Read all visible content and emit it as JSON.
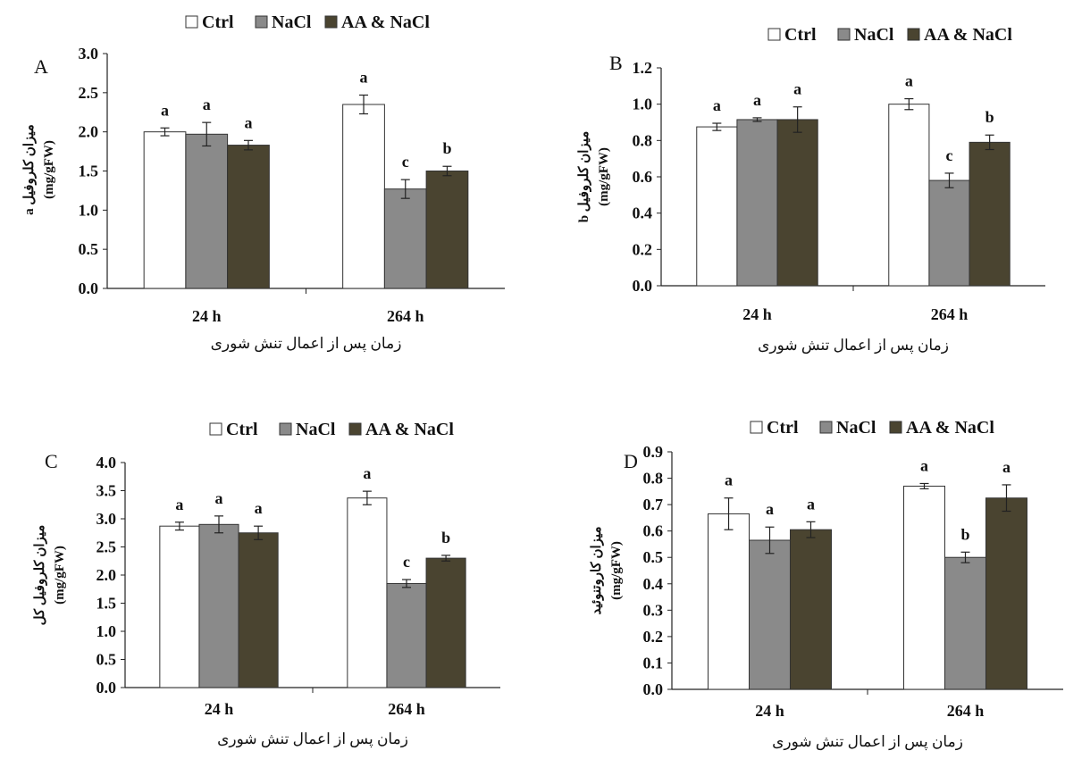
{
  "chart_data": [
    {
      "panel": "A",
      "type": "bar",
      "categories": [
        "24 h",
        "264 h"
      ],
      "xlabel": "زمان پس از اعمال تنش شوری",
      "ylabel": "میزان کلروفیل a",
      "ylabel_unit": "(mg/gFW)",
      "ylim": [
        0,
        3.0
      ],
      "yticks": [
        "0.0",
        "0.5",
        "1.0",
        "1.5",
        "2.0",
        "2.5",
        "3.0"
      ],
      "legend_position": "top",
      "series": [
        {
          "name": "Ctrl",
          "color": "#ffffff",
          "values": [
            2.0,
            2.35
          ],
          "errors": [
            0.05,
            0.12
          ],
          "labels": [
            "a",
            "a"
          ]
        },
        {
          "name": "NaCl",
          "color": "#8a8a8a",
          "values": [
            1.97,
            1.27
          ],
          "errors": [
            0.15,
            0.12
          ],
          "labels": [
            "a",
            "c"
          ]
        },
        {
          "name": "AA & NaCl",
          "color": "#4a4430",
          "values": [
            1.83,
            1.5
          ],
          "errors": [
            0.06,
            0.06
          ],
          "labels": [
            "a",
            "b"
          ]
        }
      ]
    },
    {
      "panel": "B",
      "type": "bar",
      "categories": [
        "24 h",
        "264 h"
      ],
      "xlabel": "زمان پس از اعمال تنش شوری",
      "ylabel": "میزان کلروفیل b",
      "ylabel_unit": "(mg/gFW)",
      "ylim": [
        0,
        1.2
      ],
      "yticks": [
        "0.0",
        "0.2",
        "0.4",
        "0.6",
        "0.8",
        "1.0",
        "1.2"
      ],
      "legend_position": "top",
      "series": [
        {
          "name": "Ctrl",
          "color": "#ffffff",
          "values": [
            0.875,
            1.0
          ],
          "errors": [
            0.02,
            0.03
          ],
          "labels": [
            "a",
            "a"
          ]
        },
        {
          "name": "NaCl",
          "color": "#8a8a8a",
          "values": [
            0.915,
            0.58
          ],
          "errors": [
            0.01,
            0.04
          ],
          "labels": [
            "a",
            "c"
          ]
        },
        {
          "name": "AA & NaCl",
          "color": "#4a4430",
          "values": [
            0.915,
            0.79
          ],
          "errors": [
            0.07,
            0.04
          ],
          "labels": [
            "a",
            "b"
          ]
        }
      ]
    },
    {
      "panel": "C",
      "type": "bar",
      "categories": [
        "24 h",
        "264 h"
      ],
      "xlabel": "زمان پس از اعمال تنش شوری",
      "ylabel": "میزان کلروفیل کل",
      "ylabel_unit": "(mg/gFW)",
      "ylim": [
        0,
        4.0
      ],
      "yticks": [
        "0.0",
        "0.5",
        "1.0",
        "1.5",
        "2.0",
        "2.5",
        "3.0",
        "3.5",
        "4.0"
      ],
      "legend_position": "top",
      "series": [
        {
          "name": "Ctrl",
          "color": "#ffffff",
          "values": [
            2.87,
            3.37
          ],
          "errors": [
            0.07,
            0.12
          ],
          "labels": [
            "a",
            "a"
          ]
        },
        {
          "name": "NaCl",
          "color": "#8a8a8a",
          "values": [
            2.9,
            1.85
          ],
          "errors": [
            0.15,
            0.07
          ],
          "labels": [
            "a",
            "c"
          ]
        },
        {
          "name": "AA & NaCl",
          "color": "#4a4430",
          "values": [
            2.75,
            2.3
          ],
          "errors": [
            0.12,
            0.05
          ],
          "labels": [
            "a",
            "b"
          ]
        }
      ]
    },
    {
      "panel": "D",
      "type": "bar",
      "categories": [
        "24 h",
        "264 h"
      ],
      "xlabel": "زمان پس از اعمال تنش شوری",
      "ylabel": "میزان کاروتنوئید",
      "ylabel_unit": "(mg/gFW)",
      "ylim": [
        0,
        0.9
      ],
      "yticks": [
        "0.0",
        "0.1",
        "0.2",
        "0.3",
        "0.4",
        "0.5",
        "0.6",
        "0.7",
        "0.8",
        "0.9"
      ],
      "legend_position": "top",
      "series": [
        {
          "name": "Ctrl",
          "color": "#ffffff",
          "values": [
            0.665,
            0.77
          ],
          "errors": [
            0.06,
            0.01
          ],
          "labels": [
            "a",
            "a"
          ]
        },
        {
          "name": "NaCl",
          "color": "#8a8a8a",
          "values": [
            0.565,
            0.5
          ],
          "errors": [
            0.05,
            0.02
          ],
          "labels": [
            "a",
            "b"
          ]
        },
        {
          "name": "AA & NaCl",
          "color": "#4a4430",
          "values": [
            0.605,
            0.725
          ],
          "errors": [
            0.03,
            0.05
          ],
          "labels": [
            "a",
            "a"
          ]
        }
      ]
    }
  ]
}
